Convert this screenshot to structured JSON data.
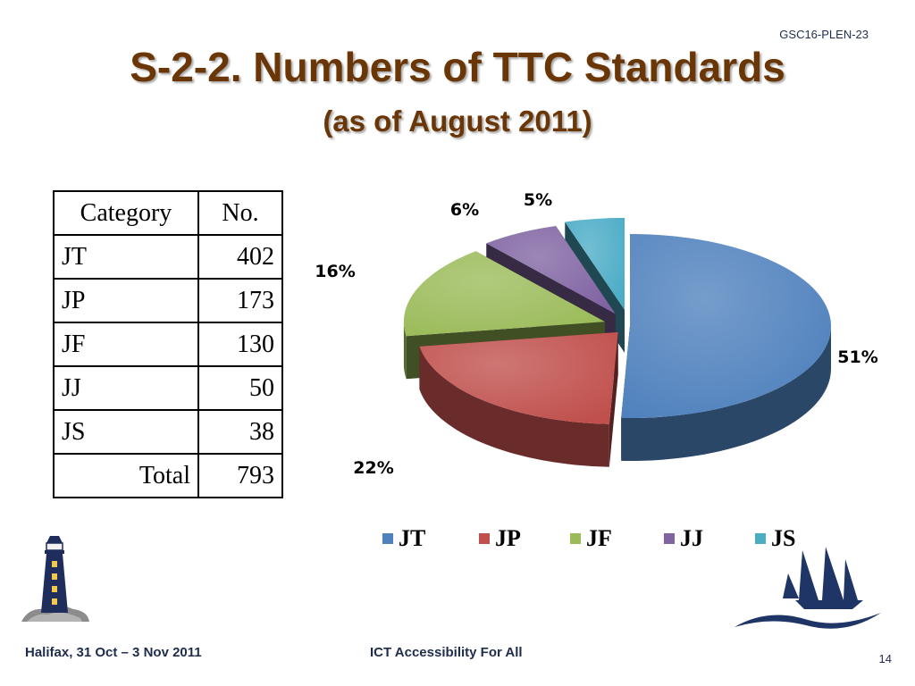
{
  "doc_id": "GSC16-PLEN-23",
  "title": "S-2-2. Numbers of TTC Standards",
  "subtitle": "(as of August 2011)",
  "table": {
    "headers": [
      "Category",
      "No."
    ],
    "rows": [
      {
        "category": "JT",
        "no": "402"
      },
      {
        "category": "JP",
        "no": "173"
      },
      {
        "category": "JF",
        "no": "130"
      },
      {
        "category": "JJ",
        "no": "50"
      },
      {
        "category": "JS",
        "no": "38"
      },
      {
        "category": "Total",
        "no": "793"
      }
    ]
  },
  "chart_data": {
    "type": "pie",
    "style": "3d-exploded",
    "legend_position": "bottom",
    "categories": [
      "JT",
      "JP",
      "JF",
      "JJ",
      "JS"
    ],
    "values": [
      402,
      173,
      130,
      50,
      38
    ],
    "data_labels": [
      "51%",
      "22%",
      "16%",
      "6%",
      "5%"
    ],
    "colors": [
      "#4f81bd",
      "#c0504d",
      "#9bbb59",
      "#8064a2",
      "#4bacc6"
    ]
  },
  "footer": {
    "left": "Halifax, 31 Oct – 3 Nov 2011",
    "center": "ICT Accessibility For All",
    "page": "14"
  }
}
